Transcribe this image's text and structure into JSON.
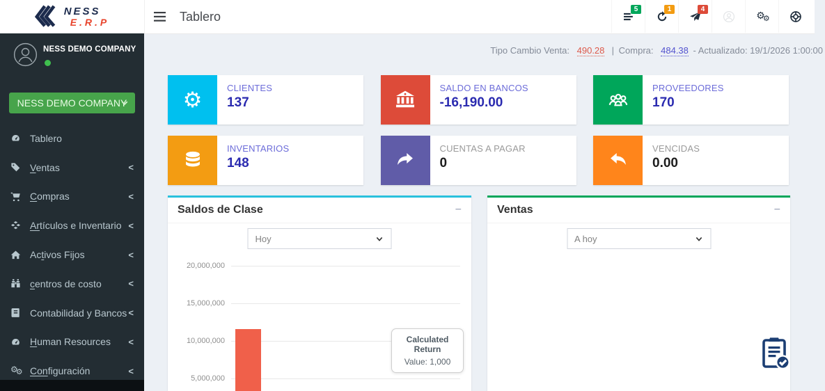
{
  "header": {
    "title": "Tablero",
    "logo": {
      "name": "NESS",
      "sub": "E.R.P"
    },
    "notifications": [
      {
        "id": "tasks",
        "icon": "list-icon",
        "count": "5",
        "badge_color": "#00a65a"
      },
      {
        "id": "sync",
        "icon": "refresh-icon",
        "count": "1",
        "badge_color": "#f39c12"
      },
      {
        "id": "alerts",
        "icon": "send-icon",
        "count": "4",
        "badge_color": "#dd4b39"
      }
    ]
  },
  "info_bar": {
    "venta_label": "Tipo Cambio Venta:",
    "venta_value": "490.28",
    "separator": "|",
    "compra_label": "Compra:",
    "compra_value": "484.38",
    "updated": "- Actualizado: 19/1/2026 1:00:00",
    "venta_color": "#dd5a4b",
    "compra_color": "#5353cf"
  },
  "sidebar": {
    "company_name": "NESS DEMO COMPANY",
    "company_button_label": "NESS DEMO COMPANY",
    "status_color": "#3fbf4e",
    "items": [
      {
        "label": "Tablero",
        "pre": "Tablero",
        "u": "",
        "post": "",
        "icon": "tachometer-icon",
        "has_submenu": false
      },
      {
        "label": "Ventas",
        "pre": "",
        "u": "V",
        "post": "entas",
        "icon": "tags-icon",
        "has_submenu": true
      },
      {
        "label": "Compras",
        "pre": "",
        "u": "C",
        "post": "ompras",
        "icon": "cart-icon",
        "has_submenu": true
      },
      {
        "label": "Artículos e Inventario",
        "pre": "",
        "u": "Ar",
        "post": "tículos e Inventario",
        "icon": "cubes-icon",
        "has_submenu": true
      },
      {
        "label": "Activos Fijos",
        "pre": "Ac",
        "u": "t",
        "post": "ivos Fijos",
        "icon": "home-icon",
        "has_submenu": true
      },
      {
        "label": "centros de costo",
        "pre": "",
        "u": "c",
        "post": "entros de costo",
        "icon": "binoculars-icon",
        "has_submenu": true
      },
      {
        "label": "Contabilidad y Bancos",
        "pre": "Contabilidad y Bancos",
        "u": "",
        "post": "",
        "icon": "journal-icon",
        "has_submenu": true
      },
      {
        "label": "Human Resources",
        "pre": "",
        "u": "H",
        "post": "uman Resources",
        "icon": "tachometer-icon",
        "has_submenu": true
      },
      {
        "label": "Configuración",
        "pre": "",
        "u": "Con",
        "post": "figuración",
        "icon": "gears-icon",
        "has_submenu": true
      }
    ]
  },
  "cards": [
    {
      "label": "CLIENTES",
      "value": "137",
      "icon": "gear-icon",
      "icon_bg": "#00c0ef",
      "label_color": "#6c6cd9",
      "value_color": "#2b2bb0"
    },
    {
      "label": "SALDO EN BANCOS",
      "value": "-16,190.00",
      "icon": "bank-icon",
      "icon_bg": "#dd4b39",
      "label_color": "#6c6cd9",
      "value_color": "#2b2bb0"
    },
    {
      "label": "PROVEEDORES",
      "value": "170",
      "icon": "users-icon",
      "icon_bg": "#00a65a",
      "label_color": "#6c6cd9",
      "value_color": "#2b2bb0"
    },
    {
      "label": "INVENTARIOS",
      "value": "148",
      "icon": "database-icon",
      "icon_bg": "#f39c12",
      "label_color": "#6c6cd9",
      "value_color": "#2b2bb0"
    },
    {
      "label": "CUENTAS A PAGAR",
      "value": "0",
      "icon": "share-icon",
      "icon_bg": "#605ca8",
      "label_color": "#9a9a9a",
      "value_color": "#1d1d1d"
    },
    {
      "label": "VENCIDAS",
      "value": "0.00",
      "icon": "reply-icon",
      "icon_bg": "#ff851b",
      "label_color": "#9a9a9a",
      "value_color": "#1d1d1d"
    }
  ],
  "panels": {
    "saldos": {
      "title": "Saldos de Clase",
      "accent": "#29c1dd",
      "period": "Hoy",
      "collapse": "−"
    },
    "ventas": {
      "title": "Ventas",
      "accent": "#00a65a",
      "period": "A hoy",
      "collapse": "−"
    }
  },
  "chart_data": [
    {
      "panel_title": "Saldos de Clase",
      "type": "bar",
      "period_selector": "Hoy",
      "yticks": [
        "20,000,000",
        "15,000,000",
        "10,000,000",
        "5,000,000"
      ],
      "ylim": [
        0,
        20000000
      ],
      "grid": true,
      "bars": [
        {
          "value": 11500000,
          "color": "#f0604a"
        }
      ],
      "tooltip": {
        "title": "Calculated Return",
        "value": "Value: 1,000"
      }
    },
    {
      "panel_title": "Ventas",
      "type": "bar",
      "period_selector": "A hoy",
      "bars": [],
      "empty_state_icon": "clipboard-check-icon"
    }
  ]
}
